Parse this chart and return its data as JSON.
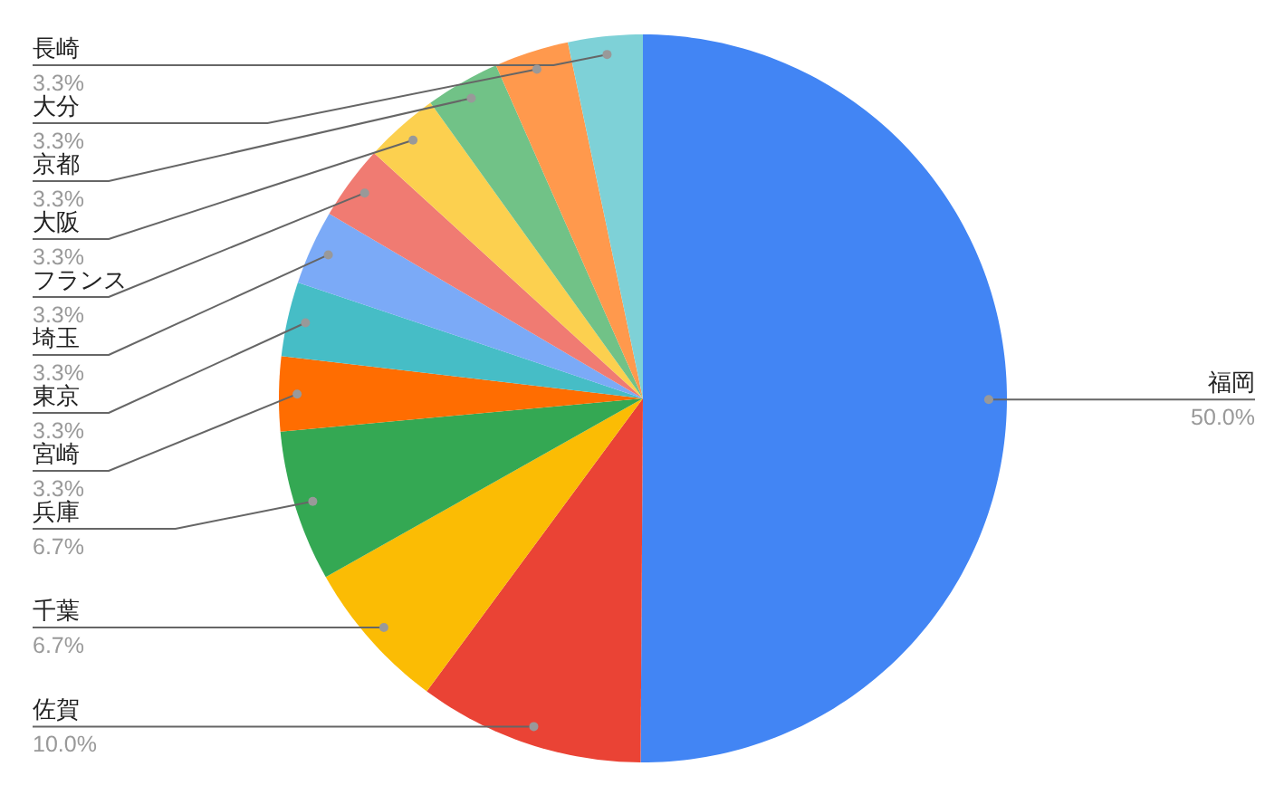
{
  "chart_data": {
    "type": "pie",
    "categories": [
      "福岡",
      "佐賀",
      "千葉",
      "兵庫",
      "宮崎",
      "東京",
      "埼玉",
      "フランス",
      "大阪",
      "京都",
      "大分",
      "長崎"
    ],
    "values": [
      50.0,
      10.0,
      6.7,
      6.7,
      3.3,
      3.3,
      3.3,
      3.3,
      3.3,
      3.3,
      3.3,
      3.3
    ],
    "value_labels": [
      "50.0%",
      "10.0%",
      "6.7%",
      "6.7%",
      "3.3%",
      "3.3%",
      "3.3%",
      "3.3%",
      "3.3%",
      "3.3%",
      "3.3%",
      "3.3%"
    ],
    "colors": [
      "#4285f4",
      "#ea4335",
      "#fbbc04",
      "#34a853",
      "#ff6d01",
      "#46bdc6",
      "#7baaf7",
      "#f07b72",
      "#fcd04f",
      "#71c287",
      "#ff994d",
      "#7ed1d7"
    ]
  }
}
